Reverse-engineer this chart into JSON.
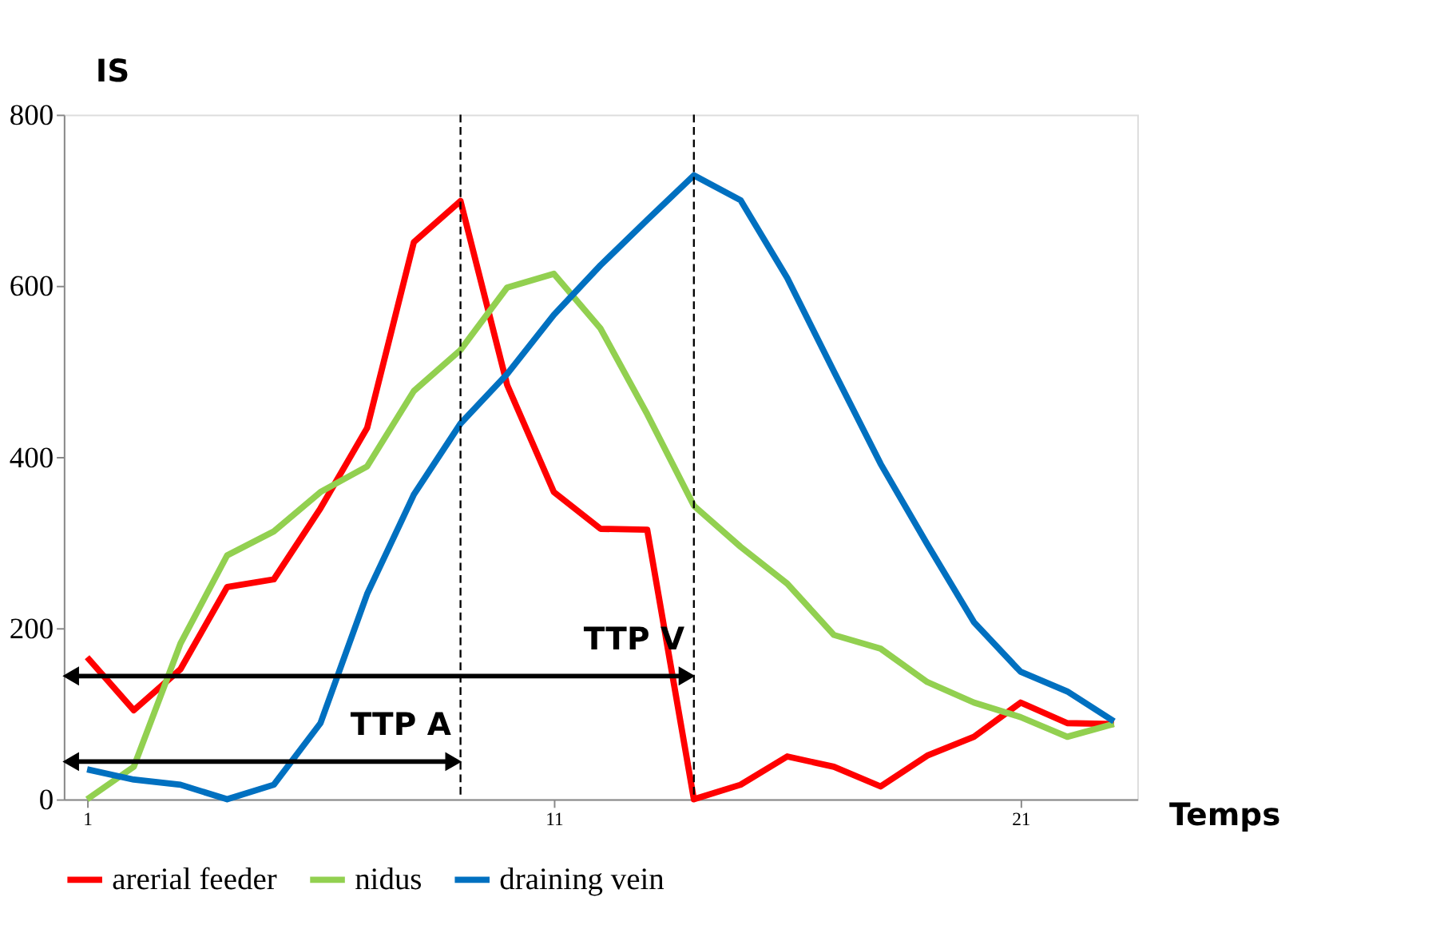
{
  "chart_data": {
    "type": "line",
    "xlabel": "Temps",
    "ylabel": "IS",
    "x": [
      1,
      2,
      3,
      4,
      5,
      6,
      7,
      8,
      9,
      10,
      11,
      12,
      13,
      14,
      15,
      16,
      17,
      18,
      19,
      20,
      21,
      22,
      23
    ],
    "series": [
      {
        "name": "arerial feeder",
        "color": "#ff0000",
        "values": [
          166,
          104,
          152,
          248,
          257,
          340,
          434,
          651,
          699,
          484,
          359,
          316,
          315,
          0,
          17,
          50,
          38,
          15,
          51,
          73,
          113,
          89,
          88
        ]
      },
      {
        "name": "nidus",
        "color": "#92d050",
        "values": [
          0,
          38,
          182,
          285,
          313,
          359,
          389,
          477,
          525,
          598,
          614,
          550,
          450,
          343,
          295,
          252,
          192,
          176,
          137,
          113,
          96,
          73,
          88
        ]
      },
      {
        "name": "draining vein",
        "color": "#0070c0",
        "values": [
          35,
          23,
          17,
          0,
          17,
          89,
          240,
          356,
          439,
          497,
          566,
          624,
          677,
          729,
          700,
          609,
          500,
          392,
          298,
          207,
          149,
          126,
          91
        ]
      }
    ],
    "xlim": [
      0.5,
      23.5
    ],
    "xticks": [
      1,
      11,
      21
    ],
    "ylim": [
      0,
      800
    ],
    "yticks": [
      0,
      200,
      400,
      600,
      800
    ],
    "grid": false,
    "legend": "bottom",
    "marker": "none",
    "line_style": "solid",
    "ref_lines": [
      {
        "axis": "x",
        "value": 9,
        "label": "TTP A",
        "color": "#000000",
        "line_style": "dashed"
      },
      {
        "axis": "x",
        "value": 14,
        "label": "TTP V",
        "color": "#000000",
        "line_style": "dashed"
      }
    ]
  }
}
